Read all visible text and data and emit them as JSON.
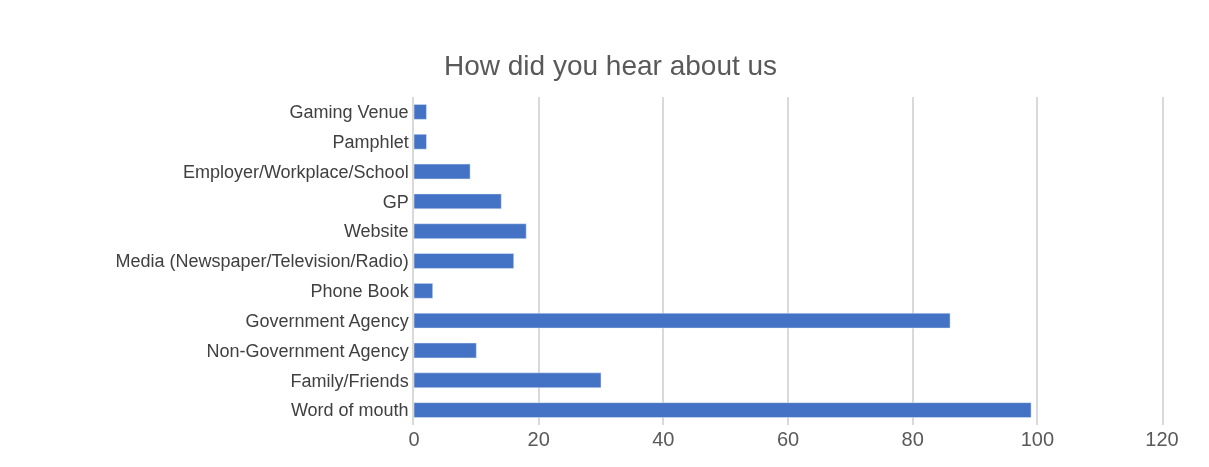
{
  "chart_data": {
    "type": "bar",
    "orientation": "horizontal",
    "title": "How did you hear about us",
    "categories": [
      "Gaming Venue",
      "Pamphlet",
      "Employer/Workplace/School",
      "GP",
      "Website",
      "Media (Newspaper/Television/Radio)",
      "Phone Book",
      "Government Agency",
      "Non-Government Agency",
      "Family/Friends",
      "Word of mouth"
    ],
    "values": [
      2,
      2,
      9,
      14,
      18,
      16,
      3,
      86,
      10,
      30,
      99
    ],
    "color": "#4472c4",
    "xlim": [
      0,
      120
    ],
    "xticks": [
      0,
      20,
      40,
      60,
      80,
      100,
      120
    ],
    "grid": "x"
  }
}
